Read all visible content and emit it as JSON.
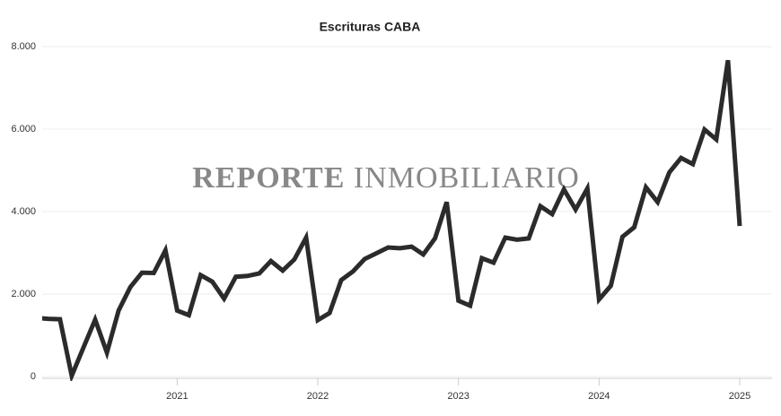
{
  "chart_data": {
    "type": "line",
    "title": "Escrituras CABA",
    "watermark": [
      "REPORTE",
      "INMOBILIARIO"
    ],
    "x": [
      2020,
      2020.0833,
      2020.1667,
      2020.25,
      2020.3333,
      2020.4167,
      2020.5,
      2020.5833,
      2020.6667,
      2020.75,
      2020.8333,
      2020.9167,
      2021,
      2021.0833,
      2021.1667,
      2021.25,
      2021.3333,
      2021.4167,
      2021.5,
      2021.5833,
      2021.6667,
      2021.75,
      2021.8333,
      2021.9167,
      2022,
      2022.0833,
      2022.1667,
      2022.25,
      2022.3333,
      2022.4167,
      2022.5,
      2022.5833,
      2022.6667,
      2022.75,
      2022.8333,
      2022.9167,
      2023,
      2023.0833,
      2023.1667,
      2023.25,
      2023.3333,
      2023.4167,
      2023.5,
      2023.5833,
      2023.6667,
      2023.75,
      2023.8333,
      2023.9167,
      2024,
      2024.0833,
      2024.1667,
      2024.25,
      2024.3333,
      2024.4167,
      2024.5,
      2024.5833,
      2024.6667,
      2024.75,
      2024.8333,
      2024.9167,
      2025
    ],
    "series": [
      {
        "name": "Escrituras",
        "color": "#2b2b2b",
        "values": [
          1420,
          1400,
          1390,
          20,
          700,
          1380,
          580,
          1600,
          2170,
          2520,
          2510,
          3060,
          1600,
          1490,
          2460,
          2300,
          1890,
          2420,
          2440,
          2500,
          2800,
          2570,
          2840,
          3370,
          1370,
          1540,
          2340,
          2550,
          2850,
          2990,
          3130,
          3110,
          3150,
          2960,
          3350,
          4230,
          1840,
          1720,
          2870,
          2760,
          3370,
          3320,
          3350,
          4130,
          3940,
          4540,
          4050,
          4560,
          1870,
          2200,
          3390,
          3620,
          4590,
          4230,
          4950,
          5300,
          5150,
          5990,
          5750,
          7670,
          3650
        ]
      }
    ],
    "xlim": [
      2020.04,
      2025.23
    ],
    "xticks": [
      2021,
      2022,
      2023,
      2024,
      2025
    ],
    "ylim": [
      0,
      8000
    ],
    "yticks": [
      0,
      {
        "value": 2000,
        "label": "2.000"
      },
      {
        "value": 4000,
        "label": "4.000"
      },
      {
        "value": 6000,
        "label": "6.000"
      },
      {
        "value": 8000,
        "label": "8.000"
      }
    ],
    "grid": true
  }
}
